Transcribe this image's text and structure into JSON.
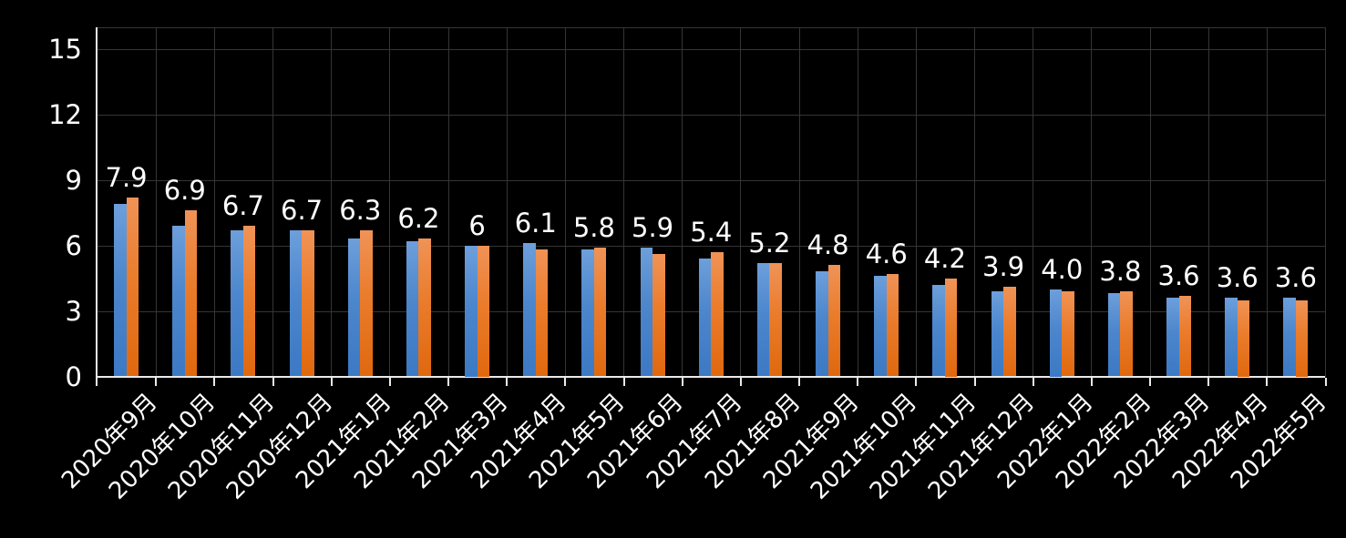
{
  "chart_data": {
    "type": "bar",
    "title": "",
    "categories": [
      "2020年9月",
      "2020年10月",
      "2020年11月",
      "2020年12月",
      "2021年1月",
      "2021年2月",
      "2021年3月",
      "2021年4月",
      "2021年5月",
      "2021年6月",
      "2021年7月",
      "2021年8月",
      "2021年9月",
      "2021年10月",
      "2021年11月",
      "2021年12月",
      "2022年1月",
      "2022年2月",
      "2022年3月",
      "2022年4月",
      "2022年5月"
    ],
    "series": [
      {
        "name": "series-1-blue",
        "color": "#4c86cc",
        "gradient_top": "#6d9fdb",
        "gradient_bottom": "#3c79c4",
        "values": [
          7.9,
          6.9,
          6.7,
          6.7,
          6.3,
          6.2,
          6.0,
          6.1,
          5.8,
          5.9,
          5.4,
          5.2,
          4.8,
          4.6,
          4.2,
          3.9,
          4.0,
          3.8,
          3.6,
          3.6,
          3.6
        ]
      },
      {
        "name": "series-2-orange",
        "color": "#ea7c2c",
        "gradient_top": "#f09357",
        "gradient_bottom": "#e0680e",
        "values": [
          8.2,
          7.6,
          6.9,
          6.7,
          6.7,
          6.3,
          6.0,
          5.8,
          5.9,
          5.6,
          5.7,
          5.2,
          5.1,
          4.7,
          4.5,
          4.1,
          3.9,
          3.9,
          3.7,
          3.5,
          3.5
        ]
      }
    ],
    "data_labels": [
      "7.9",
      "6.9",
      "6.7",
      "6.7",
      "6.3",
      "6.2",
      "6",
      "6.1",
      "5.8",
      "5.9",
      "5.4",
      "5.2",
      "4.8",
      "4.6",
      "4.2",
      "3.9",
      "4.0",
      "3.8",
      "3.6",
      "3.6",
      "3.6"
    ],
    "y_axis": {
      "ticks": [
        0,
        3,
        6,
        9,
        12,
        15
      ],
      "min": 0,
      "max": 16
    },
    "xlabel": "",
    "ylabel": "",
    "grid": true,
    "legend": "none",
    "background": "#000000",
    "text_color": "#ffffff",
    "gridline_color": "#353535",
    "axis_color": "#eaeaea"
  }
}
